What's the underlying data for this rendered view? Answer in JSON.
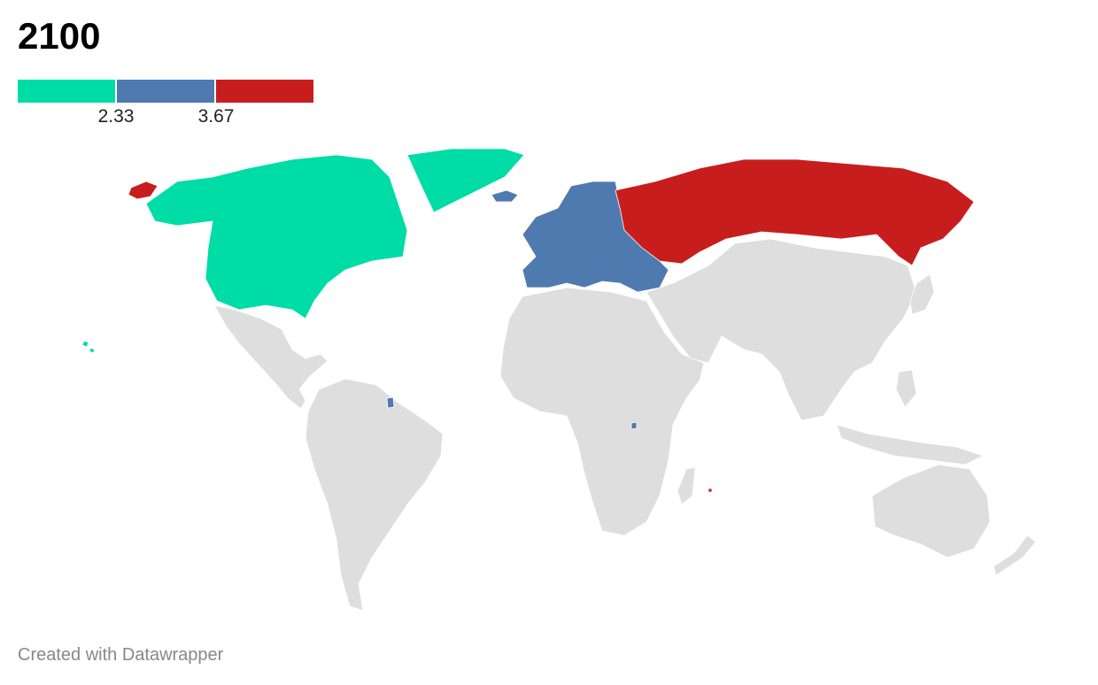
{
  "title": "2100",
  "legend": {
    "bins": [
      {
        "color": "#00dca6"
      },
      {
        "color": "#4f7aaf"
      },
      {
        "color": "#c71e1d"
      }
    ],
    "ticks": [
      "2.33",
      "3.67"
    ]
  },
  "map": {
    "no_data_color": "#dedede",
    "border_color": "#ffffff",
    "regions": [
      {
        "name": "North America",
        "color": "#00dca6"
      },
      {
        "name": "Greenland",
        "color": "#00dca6"
      },
      {
        "name": "Europe",
        "color": "#4f7aaf"
      },
      {
        "name": "Russia",
        "color": "#c71e1d"
      }
    ]
  },
  "footer": {
    "credit": "Created with Datawrapper"
  }
}
